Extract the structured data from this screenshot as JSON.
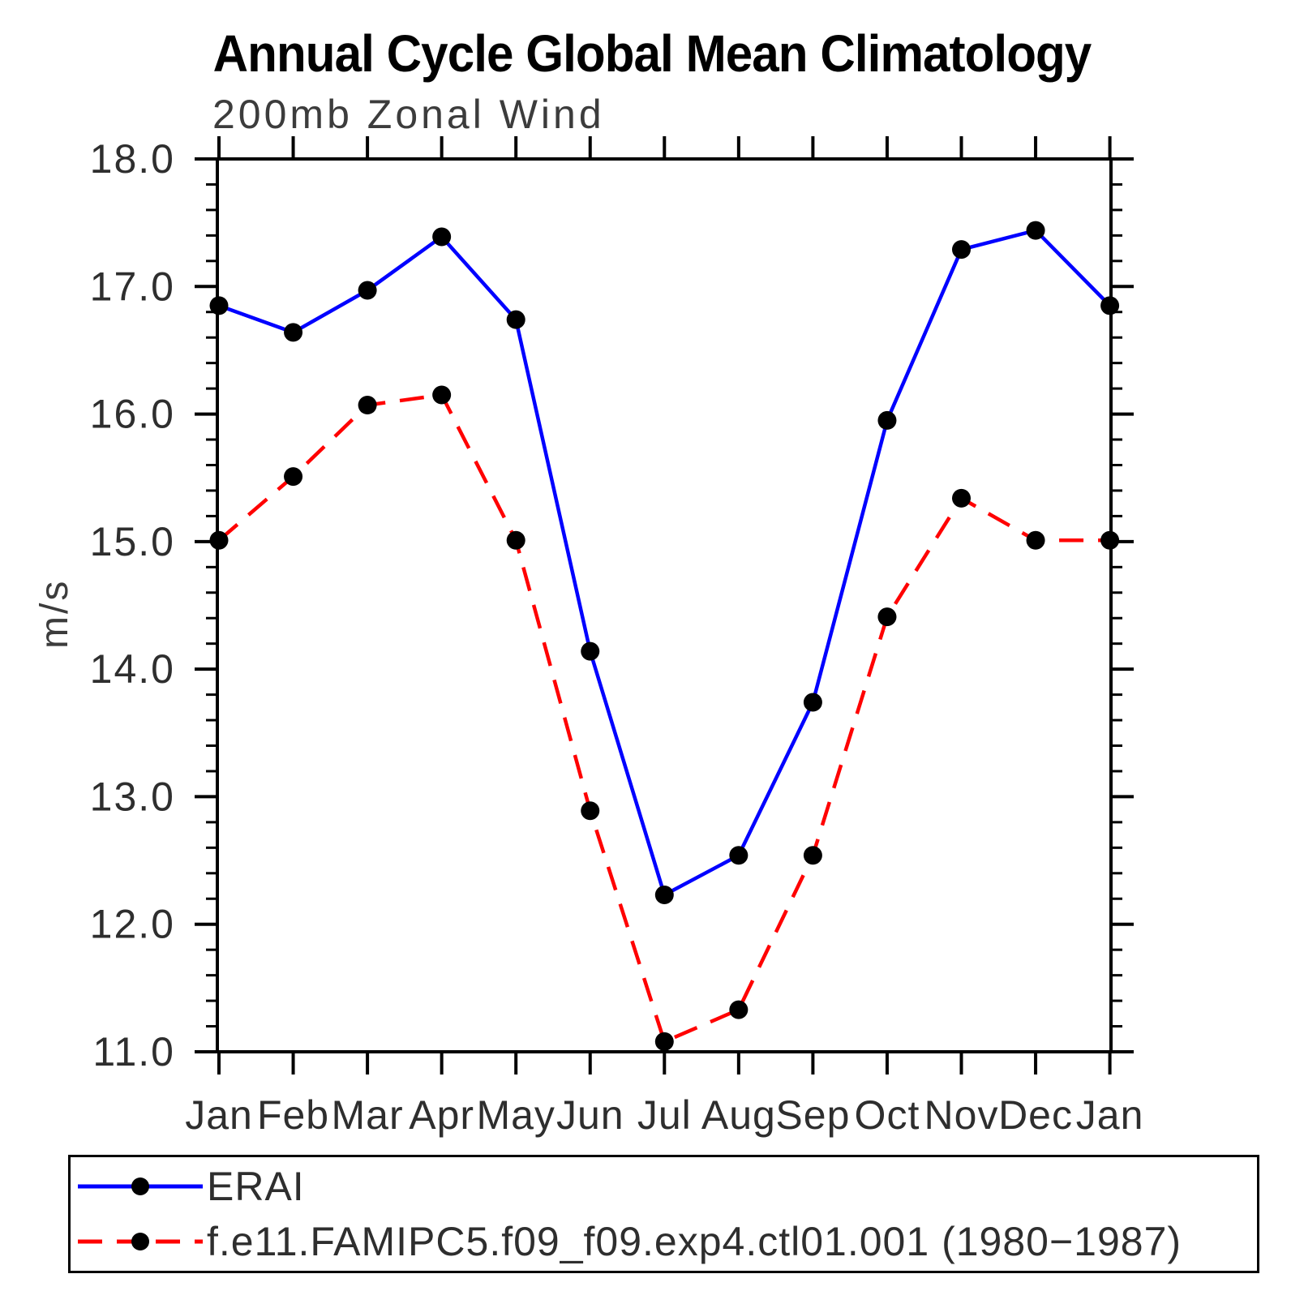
{
  "title": "Annual Cycle Global Mean Climatology",
  "chart_data": {
    "type": "line",
    "title": "Annual Cycle Global Mean Climatology",
    "subtitle": "200mb Zonal Wind",
    "ylabel": "m/s",
    "ylim": [
      11.0,
      18.0
    ],
    "ytick_step": 1.0,
    "yminor_step": 0.2,
    "ytick_labels": [
      "11.0",
      "12.0",
      "13.0",
      "14.0",
      "15.0",
      "16.0",
      "17.0",
      "18.0"
    ],
    "categories": [
      "Jan",
      "Feb",
      "Mar",
      "Apr",
      "May",
      "Jun",
      "Jul",
      "Aug",
      "Sep",
      "Oct",
      "Nov",
      "Dec",
      "Jan"
    ],
    "grid": false,
    "legend_position": "bottom",
    "marker": "filled-circle",
    "marker_color": "#000000",
    "series": [
      {
        "name": "ERAI",
        "color": "#0000ff",
        "line_style": "solid",
        "values": [
          16.85,
          16.64,
          16.97,
          17.39,
          16.74,
          14.14,
          12.23,
          12.54,
          13.74,
          15.95,
          17.29,
          17.44,
          16.85
        ]
      },
      {
        "name": "f.e11.FAMIPC5.f09_f09.exp4.ctl01.001 (1980−1987)",
        "color": "#ff0000",
        "line_style": "dashed",
        "values": [
          15.01,
          15.51,
          16.07,
          16.15,
          15.01,
          12.89,
          11.08,
          11.33,
          12.54,
          14.41,
          15.34,
          15.01,
          15.01
        ]
      }
    ]
  }
}
